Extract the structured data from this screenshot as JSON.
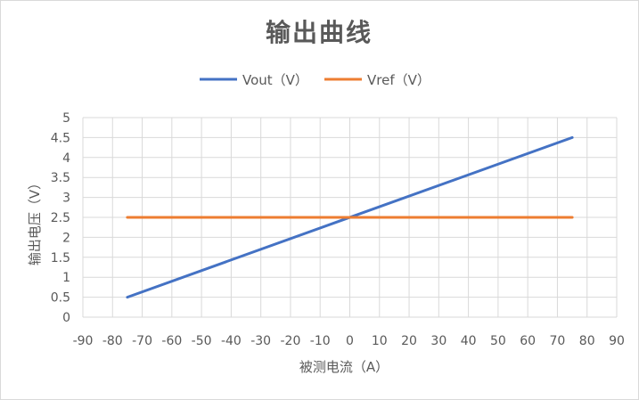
{
  "chart_data": {
    "type": "line",
    "title": "输出曲线",
    "xlabel": "被测电流（A）",
    "ylabel": "输出电压（V）",
    "xlim": [
      -90,
      90
    ],
    "ylim": [
      0,
      5
    ],
    "x_ticks": [
      -90,
      -80,
      -70,
      -60,
      -50,
      -40,
      -30,
      -20,
      -10,
      0,
      10,
      20,
      30,
      40,
      50,
      60,
      70,
      80,
      90
    ],
    "y_ticks": [
      0,
      0.5,
      1,
      1.5,
      2,
      2.5,
      3,
      3.5,
      4,
      4.5,
      5
    ],
    "grid": true,
    "legend_position": "top",
    "series": [
      {
        "name": "Vout（V）",
        "color": "#4472c4",
        "x": [
          -75,
          75
        ],
        "y": [
          0.5,
          4.5
        ]
      },
      {
        "name": "Vref（V）",
        "color": "#ed7d31",
        "x": [
          -75,
          75
        ],
        "y": [
          2.5,
          2.5
        ]
      }
    ]
  }
}
